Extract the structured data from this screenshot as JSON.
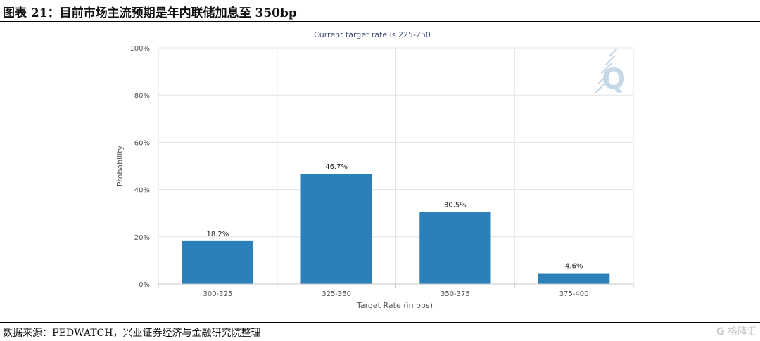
{
  "figure": {
    "title": "图表 21：目前市场主流预期是年内联储加息至 350bp",
    "source": "数据来源：FEDWATCH，兴业证券经济与金融研究院整理",
    "watermark": "格隆汇",
    "watermark_icon": "G"
  },
  "colors": {
    "bar": "#2b80b9",
    "grid": "#e3e3e3",
    "axis_text": "#555555",
    "title_text": "#3f4f7a",
    "logo": "#c5d8e8"
  },
  "logo_text": "Q",
  "chart_data": {
    "type": "bar",
    "title": "Current target rate is 225-250",
    "xlabel": "Target Rate (in bps)",
    "ylabel": "Probability",
    "categories": [
      "300-325",
      "325-350",
      "350-375",
      "375-400"
    ],
    "values": [
      18.2,
      46.7,
      30.5,
      4.6
    ],
    "data_labels": [
      "18.2%",
      "46.7%",
      "30.5%",
      "4.6%"
    ],
    "y_ticks": [
      "0%",
      "20%",
      "40%",
      "60%",
      "80%",
      "100%"
    ],
    "ylim": [
      0,
      100
    ],
    "grid": true,
    "legend": "none"
  }
}
